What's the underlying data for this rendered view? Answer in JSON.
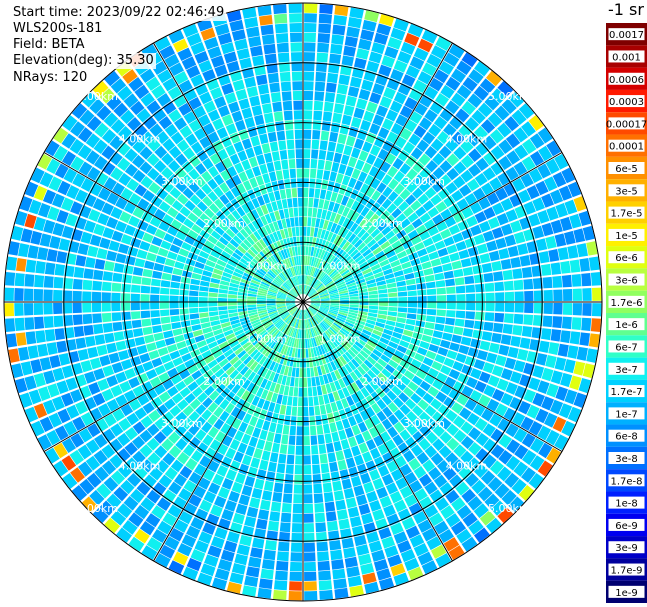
{
  "info": {
    "start_time": "Start time: 2023/09/22 02:46:49",
    "instrument": "WLS200s-181",
    "field": "Field: BETA",
    "elevation": "Elevation(deg): 35.30",
    "nrays": "NRays: 120"
  },
  "colorbar": {
    "unit_label": "-1 sr",
    "entries": [
      {
        "label": "0.0017",
        "color": "#7f0000"
      },
      {
        "label": "0.001",
        "color": "#a80000"
      },
      {
        "label": "0.0006",
        "color": "#d40000"
      },
      {
        "label": "0.0003",
        "color": "#ff1a00"
      },
      {
        "label": "0.00017",
        "color": "#ff4a00"
      },
      {
        "label": "0.0001",
        "color": "#ff7000"
      },
      {
        "label": "6e-5",
        "color": "#ff9000"
      },
      {
        "label": "3e-5",
        "color": "#ffb000"
      },
      {
        "label": "1.7e-5",
        "color": "#ffd000"
      },
      {
        "label": "1e-5",
        "color": "#fff000"
      },
      {
        "label": "6e-6",
        "color": "#e0ff10"
      },
      {
        "label": "3e-6",
        "color": "#b8ff40"
      },
      {
        "label": "1.7e-6",
        "color": "#90ff60"
      },
      {
        "label": "1e-6",
        "color": "#60ff90"
      },
      {
        "label": "6e-7",
        "color": "#30ffc8"
      },
      {
        "label": "3e-7",
        "color": "#10f0f0"
      },
      {
        "label": "1.7e-7",
        "color": "#00d0ff"
      },
      {
        "label": "1e-7",
        "color": "#00b0ff"
      },
      {
        "label": "6e-8",
        "color": "#0090ff"
      },
      {
        "label": "3e-8",
        "color": "#0070ff"
      },
      {
        "label": "1.7e-8",
        "color": "#0048ff"
      },
      {
        "label": "1e-8",
        "color": "#0020ff"
      },
      {
        "label": "6e-9",
        "color": "#0000f0"
      },
      {
        "label": "3e-9",
        "color": "#0000c8"
      },
      {
        "label": "1.7e-9",
        "color": "#00009c"
      },
      {
        "label": "1e-9",
        "color": "#000070"
      }
    ]
  },
  "chart_data": {
    "type": "heatmap",
    "projection": "polar",
    "field": "BETA",
    "nrays": 120,
    "range_rings_km": [
      1,
      2,
      3,
      4,
      5
    ],
    "range_ring_labels": [
      "1.00km",
      "2.00km",
      "3.00km",
      "4.00km",
      "5.00km"
    ],
    "max_range_km": 5.0,
    "spokes_deg": [
      0,
      30,
      60,
      90,
      120,
      150,
      180,
      210,
      240,
      270,
      300,
      330
    ],
    "color_scale": "log",
    "value_range": [
      1e-09,
      0.0017
    ],
    "typical_near_value": 6e-07,
    "typical_far_value": 1e-07,
    "grid": true
  }
}
